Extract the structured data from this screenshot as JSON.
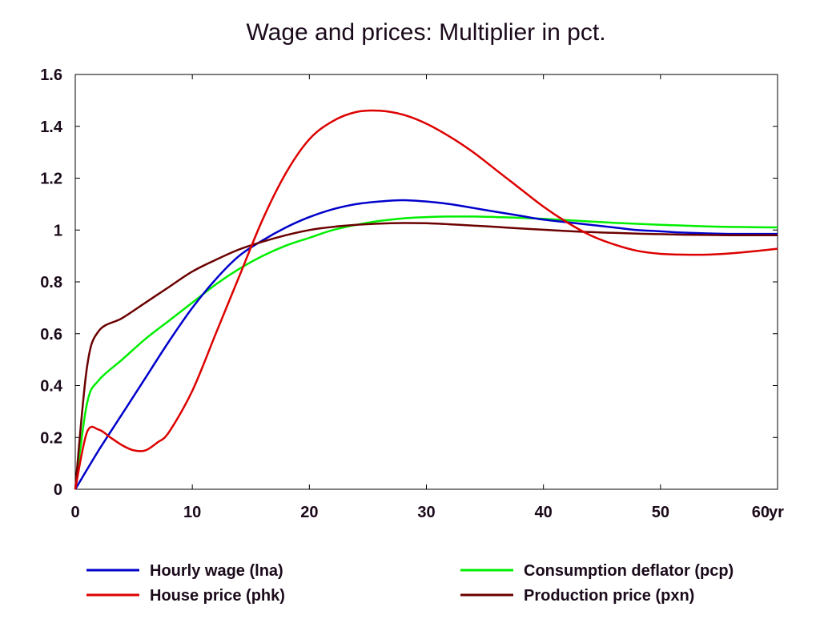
{
  "chart_data": {
    "type": "line",
    "title": "Wage and prices: Multiplier in pct.",
    "xlabel": "",
    "ylabel": "",
    "x_unit_label": "yr",
    "xlim": [
      0,
      60
    ],
    "ylim": [
      0,
      1.6
    ],
    "x_ticks": [
      "0",
      "10",
      "20",
      "30",
      "40",
      "50",
      "60"
    ],
    "y_ticks": [
      "0",
      "0.2",
      "0.4",
      "0.6",
      "0.8",
      "1",
      "1.2",
      "1.4",
      "1.6"
    ],
    "x_tick_values": [
      0,
      10,
      20,
      30,
      40,
      50,
      60
    ],
    "y_tick_values": [
      0,
      0.2,
      0.4,
      0.6,
      0.8,
      1,
      1.2,
      1.4,
      1.6
    ],
    "grid": false,
    "legend_position": "bottom",
    "series": [
      {
        "name": "Hourly wage (lna)",
        "color": "#0000cc",
        "x": [
          0,
          2,
          4,
          6,
          8,
          10,
          12,
          14,
          16,
          18,
          20,
          22,
          24,
          26,
          28,
          30,
          32,
          34,
          36,
          38,
          40,
          42,
          44,
          46,
          48,
          50,
          52,
          54,
          56,
          58,
          60
        ],
        "y": [
          0,
          0.15,
          0.29,
          0.43,
          0.57,
          0.7,
          0.81,
          0.9,
          0.96,
          1.01,
          1.05,
          1.08,
          1.1,
          1.11,
          1.115,
          1.11,
          1.1,
          1.085,
          1.07,
          1.055,
          1.04,
          1.03,
          1.02,
          1.01,
          1.0,
          0.995,
          0.99,
          0.987,
          0.985,
          0.985,
          0.985
        ]
      },
      {
        "name": "House price (phk)",
        "color": "#dd0000",
        "x": [
          0,
          1,
          2,
          3,
          4,
          5,
          6,
          7,
          8,
          10,
          12,
          14,
          16,
          18,
          20,
          22,
          24,
          26,
          28,
          30,
          32,
          34,
          36,
          38,
          40,
          42,
          44,
          46,
          48,
          50,
          52,
          54,
          56,
          58,
          60
        ],
        "y": [
          0,
          0.22,
          0.23,
          0.2,
          0.17,
          0.15,
          0.15,
          0.18,
          0.22,
          0.38,
          0.6,
          0.82,
          1.04,
          1.22,
          1.35,
          1.42,
          1.455,
          1.46,
          1.445,
          1.41,
          1.36,
          1.3,
          1.23,
          1.16,
          1.09,
          1.03,
          0.98,
          0.945,
          0.92,
          0.908,
          0.905,
          0.905,
          0.91,
          0.918,
          0.928
        ]
      },
      {
        "name": "Consumption deflator (pcp)",
        "color": "#00ee00",
        "x": [
          0,
          1,
          2,
          4,
          6,
          8,
          10,
          12,
          14,
          16,
          18,
          20,
          22,
          24,
          26,
          28,
          30,
          32,
          34,
          36,
          38,
          40,
          42,
          44,
          46,
          48,
          50,
          52,
          54,
          56,
          58,
          60
        ],
        "y": [
          0,
          0.33,
          0.42,
          0.5,
          0.58,
          0.65,
          0.72,
          0.79,
          0.85,
          0.9,
          0.94,
          0.97,
          1.0,
          1.02,
          1.035,
          1.045,
          1.05,
          1.052,
          1.052,
          1.05,
          1.047,
          1.043,
          1.038,
          1.033,
          1.028,
          1.024,
          1.02,
          1.017,
          1.014,
          1.012,
          1.011,
          1.01
        ]
      },
      {
        "name": "Production price (pxn)",
        "color": "#6b0000",
        "x": [
          0,
          1,
          2,
          4,
          6,
          8,
          10,
          12,
          14,
          16,
          18,
          20,
          22,
          24,
          26,
          28,
          30,
          32,
          34,
          36,
          38,
          40,
          42,
          44,
          46,
          48,
          50,
          52,
          54,
          56,
          58,
          60
        ],
        "y": [
          0,
          0.47,
          0.61,
          0.66,
          0.72,
          0.78,
          0.84,
          0.885,
          0.925,
          0.955,
          0.98,
          1.0,
          1.012,
          1.02,
          1.025,
          1.027,
          1.026,
          1.022,
          1.017,
          1.012,
          1.006,
          1.001,
          0.996,
          0.992,
          0.989,
          0.986,
          0.984,
          0.982,
          0.981,
          0.98,
          0.98,
          0.98
        ]
      }
    ]
  }
}
